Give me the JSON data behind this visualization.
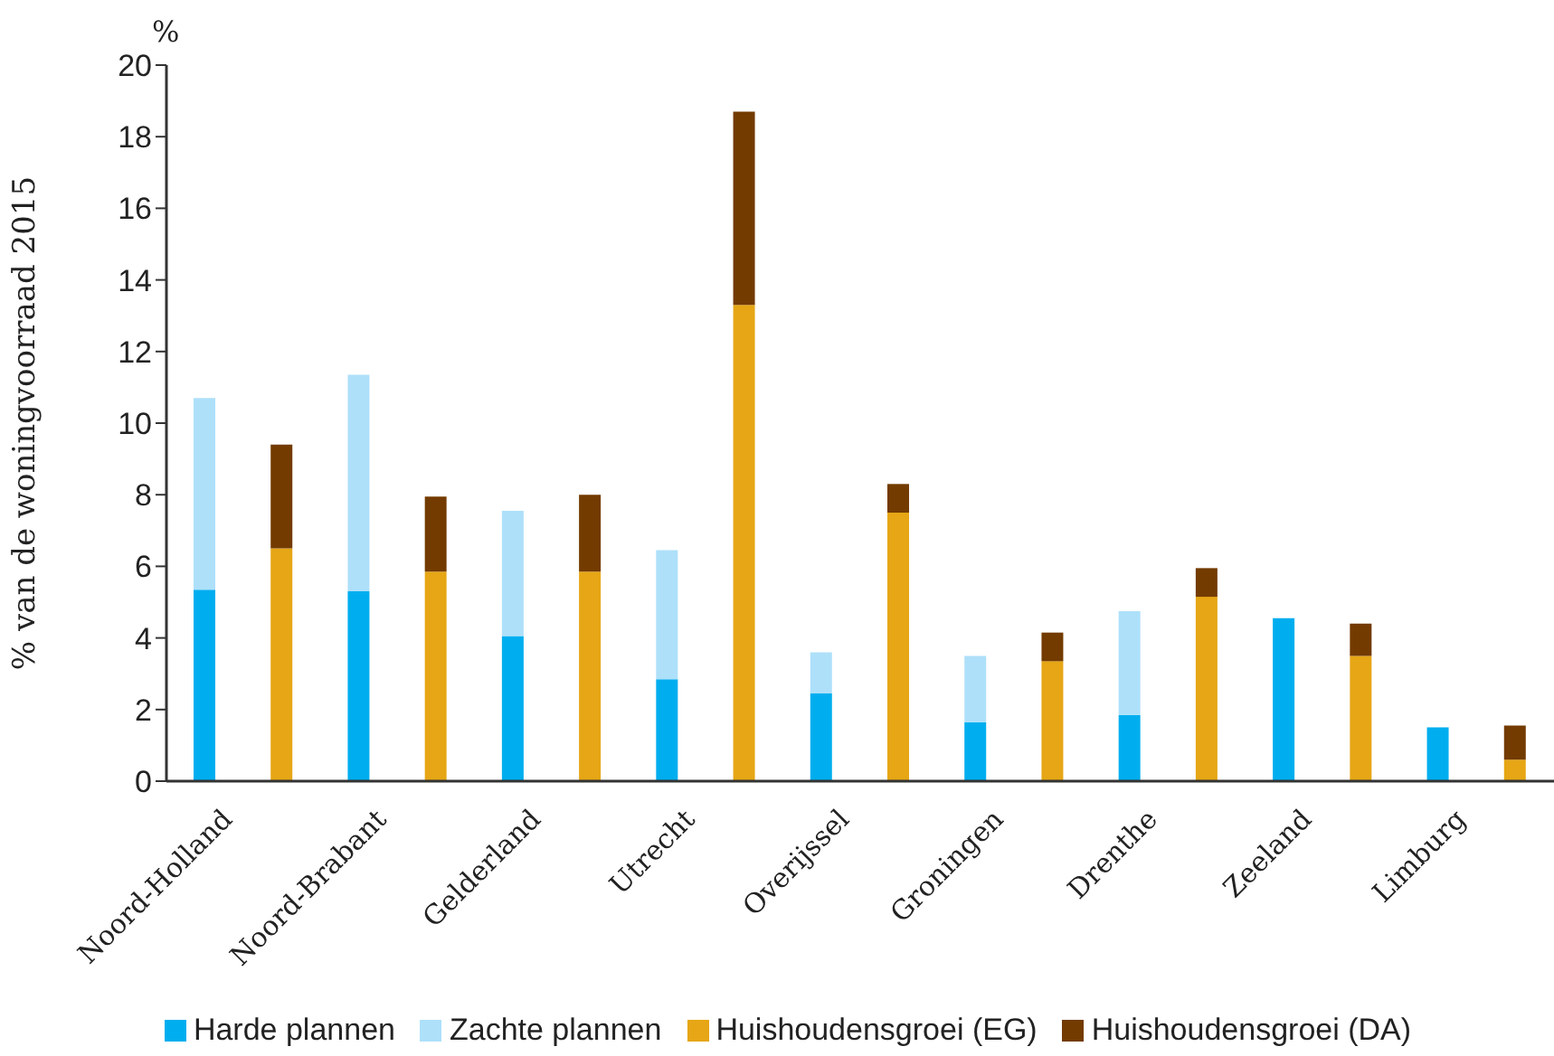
{
  "chart_data": {
    "type": "bar",
    "stacked": true,
    "ylabel": "% van de woningvoorraad 2015",
    "annotations": [
      "%"
    ],
    "categories": [
      "Noord-Holland",
      null,
      "Noord-Brabant",
      null,
      "Gelderland",
      null,
      "Utrecht",
      null,
      "Overijssel",
      null,
      "Groningen",
      null,
      "Drenthe",
      null,
      "Zeeland",
      null,
      "Limburg",
      null
    ],
    "series": [
      {
        "name": "Harde plannen",
        "color": "#00aeef",
        "values": [
          5.35,
          null,
          5.3,
          null,
          4.05,
          null,
          2.85,
          null,
          2.45,
          null,
          1.65,
          null,
          1.85,
          null,
          4.55,
          null,
          1.5,
          null
        ]
      },
      {
        "name": "Zachte plannen",
        "color": "#aee0fa",
        "values": [
          5.35,
          null,
          6.05,
          null,
          3.5,
          null,
          3.6,
          null,
          1.15,
          null,
          1.85,
          null,
          2.9,
          null,
          0,
          null,
          0,
          null
        ]
      },
      {
        "name": "Huishoudensgroei (EG)",
        "color": "#e6a615",
        "values": [
          null,
          6.5,
          null,
          5.85,
          null,
          5.85,
          null,
          13.3,
          null,
          7.5,
          null,
          3.35,
          null,
          5.15,
          null,
          3.5,
          null,
          0.6
        ]
      },
      {
        "name": "Huishoudensgroei (DA)",
        "color": "#733b00",
        "values": [
          null,
          2.9,
          null,
          2.1,
          null,
          2.15,
          null,
          5.4,
          null,
          0.8,
          null,
          0.8,
          null,
          0.8,
          null,
          0.9,
          null,
          0.95
        ]
      }
    ],
    "ylim": [
      0,
      20
    ],
    "yticks": [
      0,
      2,
      4,
      6,
      8,
      10,
      12,
      14,
      16,
      18,
      20
    ],
    "grid": false,
    "legend": "bottom"
  }
}
